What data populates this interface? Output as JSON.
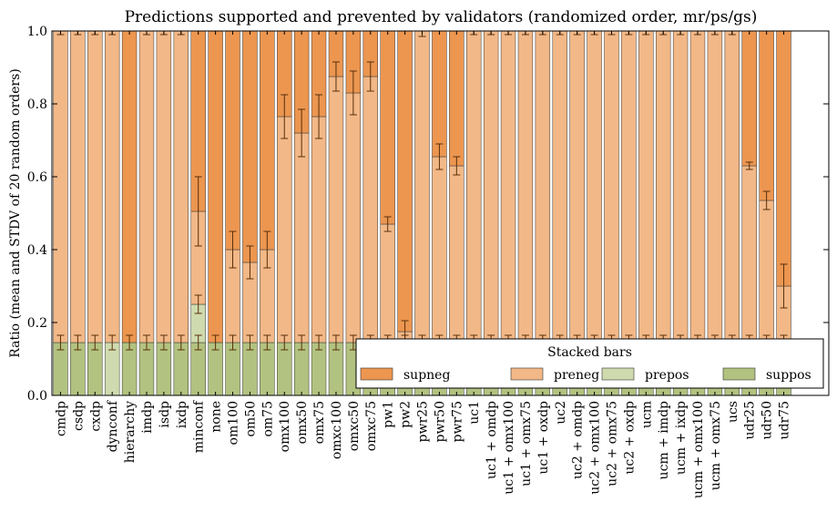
{
  "chart_data": {
    "type": "bar",
    "stacked": true,
    "title": "Predictions supported and prevented by validators (randomized order, mr/ps/gs)",
    "xlabel": "",
    "ylabel": "Ratio (mean and STDV of 20 random orders)",
    "ylim": [
      0,
      1.0
    ],
    "yticks": [
      "0.0",
      "0.2",
      "0.4",
      "0.6",
      "0.8",
      "1.0"
    ],
    "categories": [
      "cmdp",
      "csdp",
      "cxdp",
      "dynconf",
      "hierarchy",
      "imdp",
      "isdp",
      "ixdp",
      "minconf",
      "none",
      "om100",
      "om50",
      "om75",
      "omx100",
      "omx50",
      "omx75",
      "omxc100",
      "omxc50",
      "omxc75",
      "pw1",
      "pw2",
      "pwr25",
      "pwr50",
      "pwr75",
      "uc1",
      "uc1 + omdp",
      "uc1 + omx100",
      "uc1 + omx75",
      "uc1 + oxdp",
      "uc2",
      "uc2 + omdp",
      "uc2 + omx100",
      "uc2 + omx75",
      "uc2 + oxdp",
      "ucm",
      "ucm + imdp",
      "ucm + ixdp",
      "ucm + omx100",
      "ucm + omx75",
      "ucs",
      "udr25",
      "udr50",
      "udr75"
    ],
    "series": [
      {
        "name": "suppos",
        "color": "#b2c280",
        "values": [
          0.145,
          0.145,
          0.145,
          0,
          0.145,
          0.145,
          0.145,
          0.145,
          0.145,
          0.145,
          0.145,
          0.145,
          0.145,
          0.145,
          0.145,
          0.145,
          0.145,
          0.145,
          0.145,
          0.145,
          0.145,
          0.145,
          0.145,
          0.145,
          0.145,
          0.145,
          0.145,
          0.145,
          0.145,
          0.145,
          0.145,
          0.145,
          0.145,
          0.145,
          0.145,
          0.145,
          0.145,
          0.145,
          0.145,
          0.145,
          0.145,
          0.145,
          0.145
        ],
        "errors": [
          0.02,
          0.02,
          0.02,
          0,
          0.02,
          0.02,
          0.02,
          0.02,
          0.02,
          0.02,
          0.02,
          0.02,
          0.02,
          0.02,
          0.02,
          0.02,
          0.02,
          0.02,
          0.02,
          0.02,
          0.02,
          0.02,
          0.02,
          0.02,
          0.02,
          0.02,
          0.02,
          0.02,
          0.02,
          0.02,
          0.02,
          0.02,
          0.02,
          0.02,
          0.02,
          0.02,
          0.02,
          0.02,
          0.02,
          0.02,
          0.02,
          0.02,
          0.02
        ]
      },
      {
        "name": "prepos",
        "color": "#cfdbae",
        "values": [
          0,
          0,
          0,
          0.145,
          0,
          0,
          0,
          0,
          0.105,
          0,
          0,
          0,
          0,
          0,
          0,
          0,
          0,
          0,
          0,
          0,
          0,
          0,
          0,
          0,
          0,
          0,
          0,
          0,
          0,
          0,
          0,
          0,
          0,
          0,
          0,
          0,
          0,
          0,
          0,
          0,
          0,
          0,
          0
        ],
        "errors": [
          0,
          0,
          0,
          0.02,
          0,
          0,
          0,
          0,
          0.025,
          0,
          0,
          0,
          0,
          0,
          0,
          0,
          0,
          0,
          0,
          0,
          0,
          0,
          0,
          0,
          0,
          0,
          0,
          0,
          0,
          0,
          0,
          0,
          0,
          0,
          0,
          0,
          0,
          0,
          0,
          0,
          0,
          0,
          0
        ]
      },
      {
        "name": "preneg",
        "color": "#f2b887",
        "values": [
          0.855,
          0.855,
          0.855,
          0.855,
          0,
          0.855,
          0.855,
          0.855,
          0.255,
          0,
          0.255,
          0.22,
          0.255,
          0.62,
          0.575,
          0.62,
          0.73,
          0.685,
          0.73,
          0.325,
          0.03,
          0.855,
          0.51,
          0.485,
          0.855,
          0.855,
          0.855,
          0.855,
          0.855,
          0.855,
          0.855,
          0.855,
          0.855,
          0.855,
          0.855,
          0.855,
          0.855,
          0.855,
          0.855,
          0.855,
          0.485,
          0.39,
          0.155
        ],
        "errors": [
          0.01,
          0.01,
          0.01,
          0.01,
          0,
          0.01,
          0.01,
          0.01,
          0.095,
          0,
          0.05,
          0.045,
          0.05,
          0.06,
          0.065,
          0.06,
          0.04,
          0.06,
          0.04,
          0.02,
          0.03,
          0.015,
          0.035,
          0.025,
          0.01,
          0.01,
          0.01,
          0.01,
          0.01,
          0.01,
          0.01,
          0.01,
          0.01,
          0.01,
          0.01,
          0.01,
          0.01,
          0.01,
          0.01,
          0.01,
          0.01,
          0.025,
          0.06
        ]
      },
      {
        "name": "supneg",
        "color": "#ec9650",
        "values": [
          0,
          0,
          0,
          0,
          0.855,
          0,
          0,
          0,
          0.495,
          0.855,
          0.6,
          0.635,
          0.6,
          0.235,
          0.28,
          0.235,
          0.125,
          0.17,
          0.125,
          0.53,
          0.825,
          0,
          0.345,
          0.37,
          0,
          0,
          0,
          0,
          0,
          0,
          0,
          0,
          0,
          0,
          0,
          0,
          0,
          0,
          0,
          0,
          0.37,
          0.465,
          0.7
        ],
        "errors": [
          0,
          0,
          0,
          0,
          0,
          0,
          0,
          0,
          0,
          0,
          0,
          0,
          0,
          0,
          0,
          0,
          0,
          0,
          0,
          0,
          0,
          0,
          0,
          0,
          0,
          0,
          0,
          0,
          0,
          0,
          0,
          0,
          0,
          0,
          0,
          0,
          0,
          0,
          0,
          0,
          0,
          0,
          0
        ]
      }
    ],
    "legend": {
      "title": "Stacked bars",
      "position": "bottom-right",
      "entries": [
        "supneg",
        "preneg",
        "prepos",
        "suppos"
      ]
    }
  }
}
